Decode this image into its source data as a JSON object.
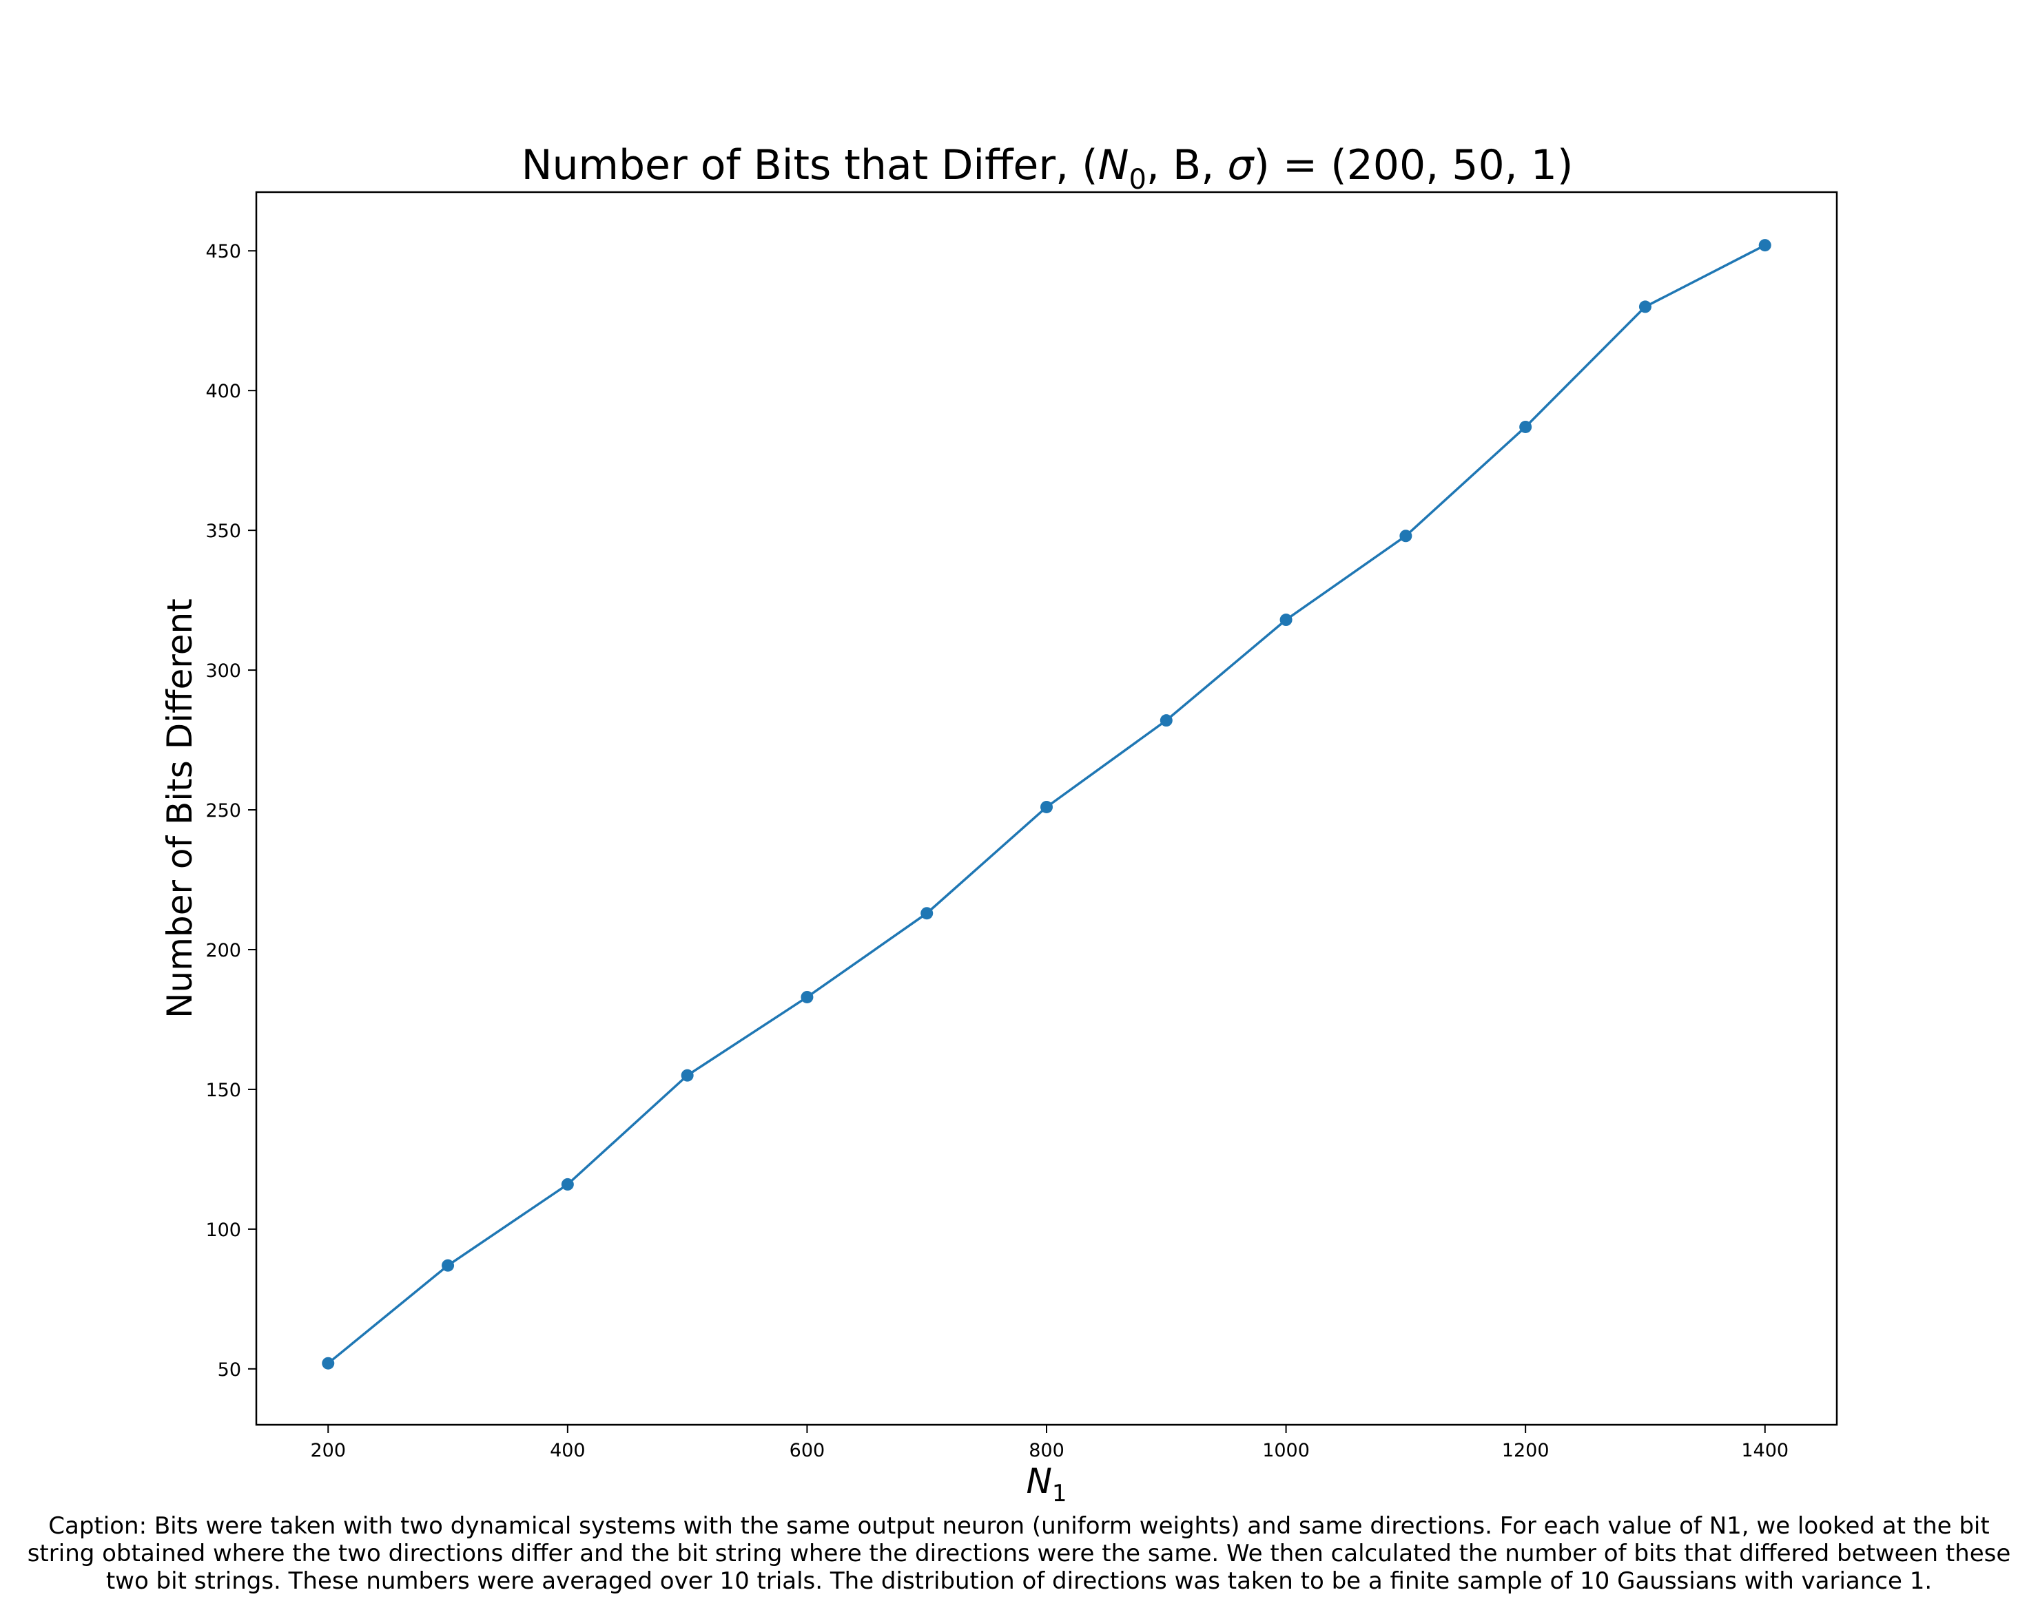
{
  "chart_data": {
    "type": "line",
    "title": {
      "prefix": "Number of Bits that Differ, (",
      "var": "N",
      "sub": "0",
      "middle": ", B, ",
      "sigma": "σ",
      "suffix": ") = (200, 50, 1)"
    },
    "xlabel": {
      "var": "N",
      "sub": "1"
    },
    "ylabel": "Number of Bits Different",
    "x": [
      200,
      300,
      400,
      500,
      600,
      700,
      800,
      900,
      1000,
      1100,
      1200,
      1300,
      1400
    ],
    "y": [
      52,
      87,
      116,
      155,
      183,
      213,
      251,
      282,
      318,
      348,
      387,
      430,
      452
    ],
    "xticks": [
      "200",
      "400",
      "600",
      "800",
      "1000",
      "1200",
      "1400"
    ],
    "yticks": [
      "50",
      "100",
      "150",
      "200",
      "250",
      "300",
      "350",
      "400",
      "450"
    ],
    "xlim": [
      140,
      1460
    ],
    "ylim": [
      30,
      471
    ],
    "grid": false,
    "marker": "circle",
    "color": "#1f77b4"
  },
  "caption": "Caption: Bits were taken with two dynamical systems with the same output neuron (uniform weights) and same directions. For each value of N1, we looked at the bit string obtained where the two directions differ and the bit string where the directions were the same. We then calculated the number of bits that differed between these two bit strings. These numbers were averaged over 10 trials. The distribution of directions was taken to be a finite sample of 10 Gaussians with variance 1."
}
